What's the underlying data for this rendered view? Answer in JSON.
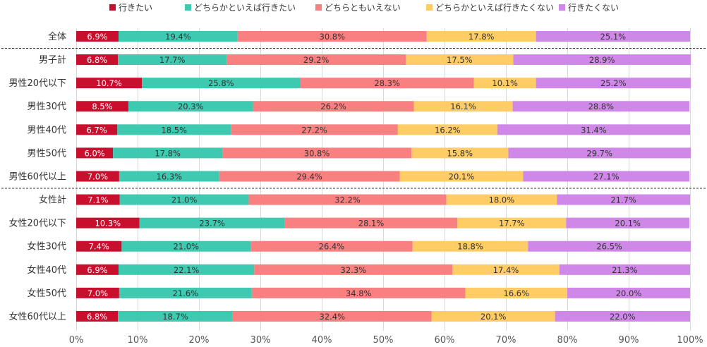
{
  "chart_data": {
    "type": "bar",
    "orientation": "horizontal",
    "stacked": true,
    "percent": true,
    "categories": [
      "全体",
      "男子計",
      "男性20代以下",
      "男性30代",
      "男性40代",
      "男性50代",
      "男性60代以上",
      "女性計",
      "女性20代以下",
      "女性30代",
      "女性40代",
      "女性50代",
      "女性60代以上"
    ],
    "series": [
      {
        "name": "行きたい",
        "color": "#c8102e",
        "label_color": "#ffffff",
        "values": [
          6.9,
          6.8,
          10.7,
          8.5,
          6.7,
          6.0,
          7.0,
          7.1,
          10.3,
          7.4,
          6.9,
          7.0,
          6.8
        ]
      },
      {
        "name": "どちらかといえば行きたい",
        "color": "#3ec9b0",
        "label_color": "#333333",
        "values": [
          19.4,
          17.7,
          25.8,
          20.3,
          18.5,
          17.8,
          16.3,
          21.0,
          23.7,
          21.0,
          22.1,
          21.6,
          18.7
        ]
      },
      {
        "name": "どちらともいえない",
        "color": "#f98080",
        "label_color": "#333333",
        "values": [
          30.8,
          29.2,
          28.3,
          26.2,
          27.2,
          30.8,
          29.4,
          32.2,
          28.1,
          26.4,
          32.3,
          34.8,
          32.4
        ]
      },
      {
        "name": "どちらかといえば行きたくない",
        "color": "#ffcc66",
        "label_color": "#333333",
        "values": [
          17.8,
          17.5,
          10.1,
          16.1,
          16.2,
          15.8,
          20.1,
          18.0,
          17.7,
          18.8,
          17.4,
          16.6,
          20.1
        ]
      },
      {
        "name": "行きたくない",
        "color": "#d088e8",
        "label_color": "#333333",
        "values": [
          25.1,
          28.9,
          25.2,
          28.8,
          31.4,
          29.7,
          27.1,
          21.7,
          20.1,
          26.5,
          21.3,
          20.0,
          22.0
        ]
      }
    ],
    "value_labels": [
      [
        "6.9%",
        "6.8%",
        "10.7%",
        "8.5%",
        "6.7%",
        "6.0%",
        "7.0%",
        "7.1%",
        "10.3%",
        "7.4%",
        "6.9%",
        "7.0%",
        "6.8%"
      ],
      [
        "19.4%",
        "17.7%",
        "25.8%",
        "20.3%",
        "18.5%",
        "17.8%",
        "16.3%",
        "21.0%",
        "23.7%",
        "21.0%",
        "22.1%",
        "21.6%",
        "18.7%"
      ],
      [
        "30.8%",
        "29.2%",
        "28.3%",
        "26.2%",
        "27.2%",
        "30.8%",
        "29.4%",
        "32.2%",
        "28.1%",
        "26.4%",
        "32.3%",
        "34.8%",
        "32.4%"
      ],
      [
        "17.8%",
        "17.5%",
        "10.1%",
        "16.1%",
        "16.2%",
        "15.8%",
        "20.1%",
        "18.0%",
        "17.7%",
        "18.8%",
        "17.4%",
        "16.6%",
        "20.1%"
      ],
      [
        "25.1%",
        "28.9%",
        "25.2%",
        "28.8%",
        "31.4%",
        "29.7%",
        "27.1%",
        "21.7%",
        "20.1%",
        "26.5%",
        "21.3%",
        "20.0%",
        "22.0%"
      ]
    ],
    "x_ticks": [
      0,
      10,
      20,
      30,
      40,
      50,
      60,
      70,
      80,
      90,
      100
    ],
    "x_tick_labels": [
      "0%",
      "10%",
      "20%",
      "30%",
      "40%",
      "50%",
      "60%",
      "70%",
      "80%",
      "90%",
      "100%"
    ],
    "xlim": [
      0,
      100
    ],
    "group_separators_after": [
      "全体",
      "男性60代以上"
    ],
    "legend_position": "top",
    "title": "",
    "xlabel": "",
    "ylabel": ""
  }
}
